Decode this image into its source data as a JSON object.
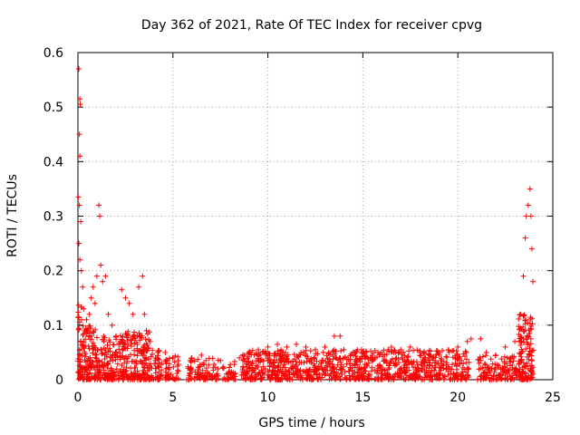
{
  "chart_data": {
    "type": "scatter",
    "title": "Day 362 of 2021, Rate Of TEC Index for receiver cpvg",
    "xlabel": "GPS time / hours",
    "ylabel": "ROTI / TECUs",
    "xlim": [
      0,
      25
    ],
    "ylim": [
      0,
      0.6
    ],
    "xticks": [
      0,
      5,
      10,
      15,
      20,
      25
    ],
    "yticks": [
      0,
      0.1,
      0.2,
      0.3,
      0.4,
      0.5,
      0.6
    ],
    "ytick_labels": [
      "0",
      "0.1",
      "0.2",
      "0.3",
      "0.4",
      "0.5",
      "0.6"
    ],
    "grid": true,
    "marker": "+",
    "color": "#ff0000",
    "series": [
      {
        "name": "ROTI",
        "points": [
          [
            0.05,
            0.57
          ],
          [
            0.1,
            0.515
          ],
          [
            0.12,
            0.505
          ],
          [
            0.08,
            0.45
          ],
          [
            0.1,
            0.41
          ],
          [
            0.02,
            0.335
          ],
          [
            0.08,
            0.32
          ],
          [
            0.15,
            0.29
          ],
          [
            0.05,
            0.25
          ],
          [
            0.1,
            0.22
          ],
          [
            0.18,
            0.2
          ],
          [
            0.25,
            0.17
          ],
          [
            0.3,
            0.13
          ],
          [
            0.35,
            0.09
          ],
          [
            0.45,
            0.11
          ],
          [
            0.6,
            0.12
          ],
          [
            0.7,
            0.15
          ],
          [
            0.8,
            0.17
          ],
          [
            0.9,
            0.14
          ],
          [
            1.0,
            0.19
          ],
          [
            1.1,
            0.32
          ],
          [
            1.15,
            0.3
          ],
          [
            1.2,
            0.21
          ],
          [
            1.3,
            0.18
          ],
          [
            1.45,
            0.19
          ],
          [
            1.6,
            0.12
          ],
          [
            1.8,
            0.1
          ],
          [
            2.0,
            0.08
          ],
          [
            2.3,
            0.165
          ],
          [
            2.5,
            0.15
          ],
          [
            2.7,
            0.14
          ],
          [
            2.9,
            0.12
          ],
          [
            3.2,
            0.17
          ],
          [
            3.4,
            0.19
          ],
          [
            3.5,
            0.12
          ],
          [
            3.6,
            0.09
          ],
          [
            3.8,
            0.07
          ],
          [
            4.2,
            0.05
          ],
          [
            4.6,
            0.05
          ],
          [
            5.0,
            0.04
          ],
          [
            6.0,
            0.04
          ],
          [
            6.5,
            0.045
          ],
          [
            7.5,
            0.035
          ],
          [
            8.5,
            0.04
          ],
          [
            9.0,
            0.05
          ],
          [
            9.5,
            0.055
          ],
          [
            10.0,
            0.06
          ],
          [
            10.5,
            0.065
          ],
          [
            11.0,
            0.06
          ],
          [
            11.5,
            0.065
          ],
          [
            12.0,
            0.06
          ],
          [
            12.5,
            0.055
          ],
          [
            13.0,
            0.06
          ],
          [
            13.5,
            0.08
          ],
          [
            13.8,
            0.08
          ],
          [
            14.0,
            0.055
          ],
          [
            14.5,
            0.05
          ],
          [
            15.0,
            0.05
          ],
          [
            15.5,
            0.045
          ],
          [
            16.0,
            0.05
          ],
          [
            16.5,
            0.06
          ],
          [
            17.0,
            0.055
          ],
          [
            17.5,
            0.06
          ],
          [
            18.0,
            0.05
          ],
          [
            18.5,
            0.045
          ],
          [
            19.0,
            0.05
          ],
          [
            19.5,
            0.055
          ],
          [
            20.0,
            0.06
          ],
          [
            20.5,
            0.07
          ],
          [
            20.7,
            0.075
          ],
          [
            21.2,
            0.075
          ],
          [
            21.5,
            0.05
          ],
          [
            22.0,
            0.045
          ],
          [
            22.5,
            0.06
          ],
          [
            23.0,
            0.07
          ],
          [
            23.3,
            0.12
          ],
          [
            23.45,
            0.19
          ],
          [
            23.55,
            0.26
          ],
          [
            23.6,
            0.3
          ],
          [
            23.7,
            0.32
          ],
          [
            23.8,
            0.35
          ],
          [
            23.85,
            0.3
          ],
          [
            23.9,
            0.24
          ],
          [
            23.95,
            0.18
          ]
        ]
      }
    ]
  }
}
